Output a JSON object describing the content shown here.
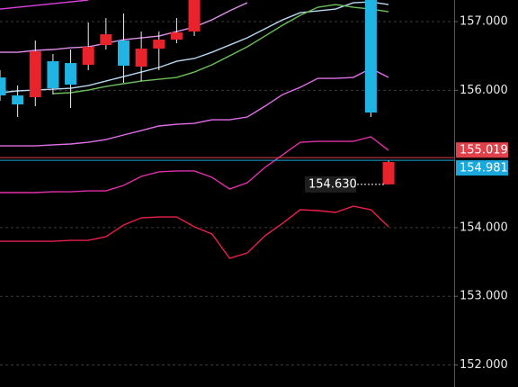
{
  "chart_data": {
    "type": "candlestick",
    "categories": [
      null,
      null,
      null,
      null,
      null,
      null,
      null,
      null,
      null,
      null,
      null,
      null,
      null,
      null,
      null,
      null,
      null,
      null,
      null,
      null,
      null,
      null,
      null
    ],
    "candles": [
      {
        "open": 155.925,
        "high": 156.292,
        "low": 155.847,
        "close": 156.187
      },
      {
        "open": 155.794,
        "high": 156.069,
        "low": 155.611,
        "close": 155.925
      },
      {
        "open": 156.567,
        "high": 156.725,
        "low": 155.768,
        "close": 155.899
      },
      {
        "open": 156.03,
        "high": 156.528,
        "low": 155.938,
        "close": 156.423
      },
      {
        "open": 156.082,
        "high": 156.594,
        "low": 155.742,
        "close": 156.397
      },
      {
        "open": 156.633,
        "high": 156.987,
        "low": 156.292,
        "close": 156.371
      },
      {
        "open": 156.816,
        "high": 157.052,
        "low": 156.594,
        "close": 156.659
      },
      {
        "open": 156.358,
        "high": 157.118,
        "low": 156.109,
        "close": 156.725
      },
      {
        "open": 156.607,
        "high": 156.856,
        "low": 156.135,
        "close": 156.345
      },
      {
        "open": 156.738,
        "high": 156.856,
        "low": 156.292,
        "close": 156.607
      },
      {
        "open": 156.843,
        "high": 157.052,
        "low": 156.685,
        "close": 156.738
      },
      {
        "open": 157.315,
        "high": 157.315,
        "low": 156.79,
        "close": 156.856
      },
      null,
      null,
      null,
      null,
      null,
      null,
      null,
      null,
      null,
      {
        "open": 155.676,
        "high": 157.315,
        "low": 155.611,
        "close": 157.315
      },
      {
        "open": 154.956,
        "high": 154.982,
        "low": 154.628,
        "close": 154.63
      }
    ],
    "up_color": "#1fb4e4",
    "down_color": "#e8232b",
    "series": [
      {
        "color": "#e040e0",
        "values": [
          157.183,
          157.21,
          157.236,
          157.262,
          157.288,
          157.315,
          null,
          null,
          null,
          null,
          null,
          null,
          null,
          null,
          null,
          null,
          null,
          null,
          null,
          null,
          null,
          null,
          null
        ]
      },
      {
        "color": "#e08ee8",
        "values": [
          156.554,
          156.554,
          156.581,
          156.594,
          156.62,
          156.633,
          156.685,
          156.738,
          156.764,
          156.79,
          156.856,
          156.921,
          157.026,
          157.157,
          157.275,
          null,
          null,
          null,
          null,
          null,
          null,
          null,
          null
        ]
      },
      {
        "color": "#b8d8f0",
        "values": [
          155.965,
          155.991,
          156.004,
          156.017,
          156.03,
          156.069,
          156.135,
          156.2,
          156.266,
          156.332,
          156.423,
          156.463,
          156.554,
          156.659,
          156.764,
          156.895,
          157.026,
          157.131,
          157.157,
          157.183,
          157.275,
          157.288,
          157.249
        ]
      },
      {
        "color": "#6cbf5a",
        "values": [
          null,
          null,
          null,
          155.952,
          155.965,
          156.004,
          156.056,
          156.096,
          156.135,
          156.161,
          156.187,
          156.266,
          156.371,
          156.502,
          156.633,
          156.79,
          156.948,
          157.092,
          157.21,
          157.249,
          157.21,
          157.183,
          157.144
        ]
      },
      {
        "color": "#e070e8",
        "values": [
          155.191,
          155.191,
          155.191,
          155.205,
          155.218,
          155.244,
          155.283,
          155.349,
          155.414,
          155.48,
          155.506,
          155.519,
          155.571,
          155.571,
          155.611,
          155.768,
          155.938,
          156.043,
          156.174,
          156.174,
          156.187,
          156.318,
          156.187
        ]
      },
      {
        "color": "#e030a8",
        "values": [
          154.51,
          154.51,
          154.51,
          154.523,
          154.523,
          154.536,
          154.536,
          154.615,
          154.746,
          154.812,
          154.825,
          154.825,
          154.733,
          154.562,
          154.654,
          154.877,
          155.06,
          155.244,
          155.257,
          155.257,
          155.257,
          155.323,
          155.126
        ]
      },
      {
        "color": "#e8204a",
        "values": [
          153.802,
          153.802,
          153.802,
          153.802,
          153.815,
          153.815,
          153.868,
          154.038,
          154.143,
          154.156,
          154.156,
          154.012,
          153.907,
          153.553,
          153.632,
          153.881,
          154.064,
          154.261,
          154.248,
          154.222,
          154.313,
          154.261,
          154.012
        ]
      }
    ],
    "ylim": [
      151.679,
      157.315
    ],
    "yticks": [
      {
        "value": 157,
        "label": "157.000"
      },
      {
        "value": 156,
        "label": "156.000"
      },
      {
        "value": 154,
        "label": "154.000"
      },
      {
        "value": 153,
        "label": "153.000"
      },
      {
        "value": 152,
        "label": "152.000"
      }
    ],
    "grid": true,
    "price_lines": [
      {
        "value": 155.019,
        "label": "155.019",
        "color": "#e0404a"
      },
      {
        "value": 154.981,
        "label": "154.981",
        "color": "#1aa8dc"
      }
    ],
    "last_price": {
      "value": 154.63,
      "label": "154.630"
    }
  }
}
